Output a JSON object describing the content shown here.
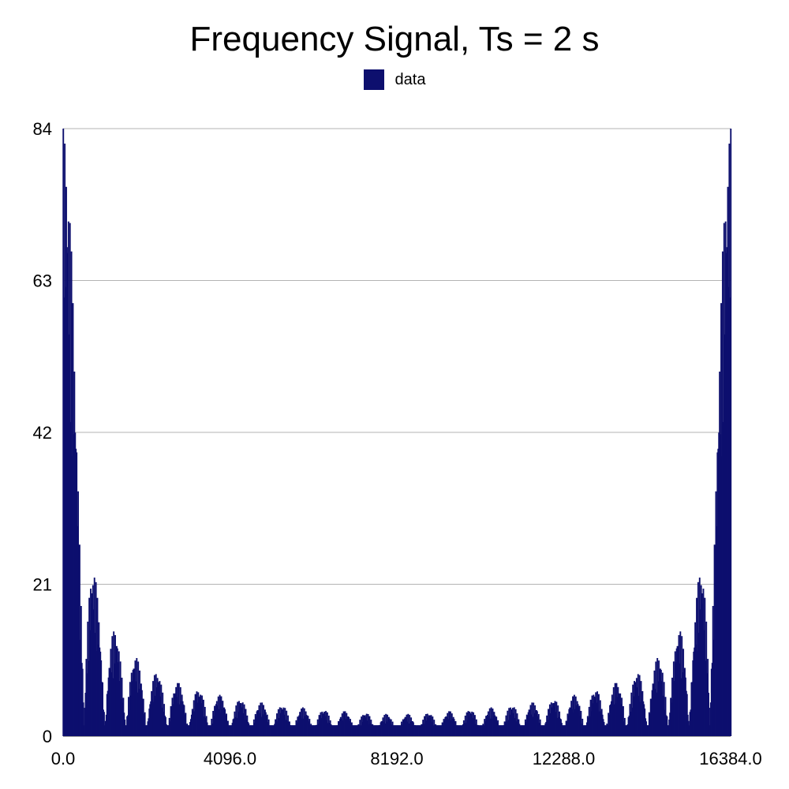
{
  "chart_data": {
    "type": "bar",
    "title": "Frequency Signal, Ts = 2 s",
    "legend": {
      "placement": "top-center",
      "entries": [
        "data"
      ]
    },
    "series": [
      {
        "name": "data",
        "color": "#0d0f6e",
        "envelope": {
          "center_x": 0,
          "period": 16384,
          "main_peak": 84,
          "null_spacing": 512,
          "ripple_spacing": 40,
          "floor": 1.5,
          "peak_decay": "sinc"
        }
      }
    ],
    "xlim": [
      0,
      16384
    ],
    "ylim": [
      0,
      84
    ],
    "x_ticks": [
      "0.0",
      "4096.0",
      "8192.0",
      "12288.0",
      "16384.0"
    ],
    "y_ticks": [
      "0",
      "21",
      "42",
      "63",
      "84"
    ],
    "grid": "horizontal",
    "xlabel": "",
    "ylabel": ""
  }
}
